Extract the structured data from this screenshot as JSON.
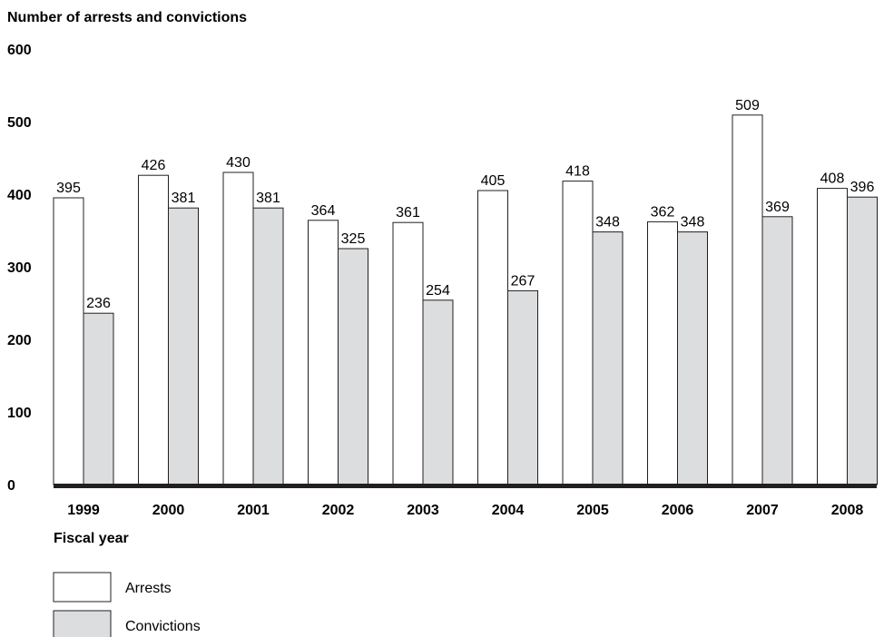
{
  "chart_data": {
    "type": "bar",
    "ylabel": "Number of arrests and convictions",
    "xlabel": "Fiscal year",
    "ylim": [
      0,
      600
    ],
    "yticks": [
      0,
      100,
      200,
      300,
      400,
      500,
      600
    ],
    "grid": false,
    "legend_position": "bottom-left",
    "categories": [
      "1999",
      "2000",
      "2001",
      "2002",
      "2003",
      "2004",
      "2005",
      "2006",
      "2007",
      "2008"
    ],
    "series": [
      {
        "name": "Arrests",
        "color": "#ffffff",
        "values": [
          395,
          426,
          430,
          364,
          361,
          405,
          418,
          362,
          509,
          408
        ]
      },
      {
        "name": "Convictions",
        "color": "#dcdddf",
        "values": [
          236,
          381,
          381,
          325,
          254,
          267,
          348,
          348,
          369,
          396
        ]
      }
    ]
  }
}
